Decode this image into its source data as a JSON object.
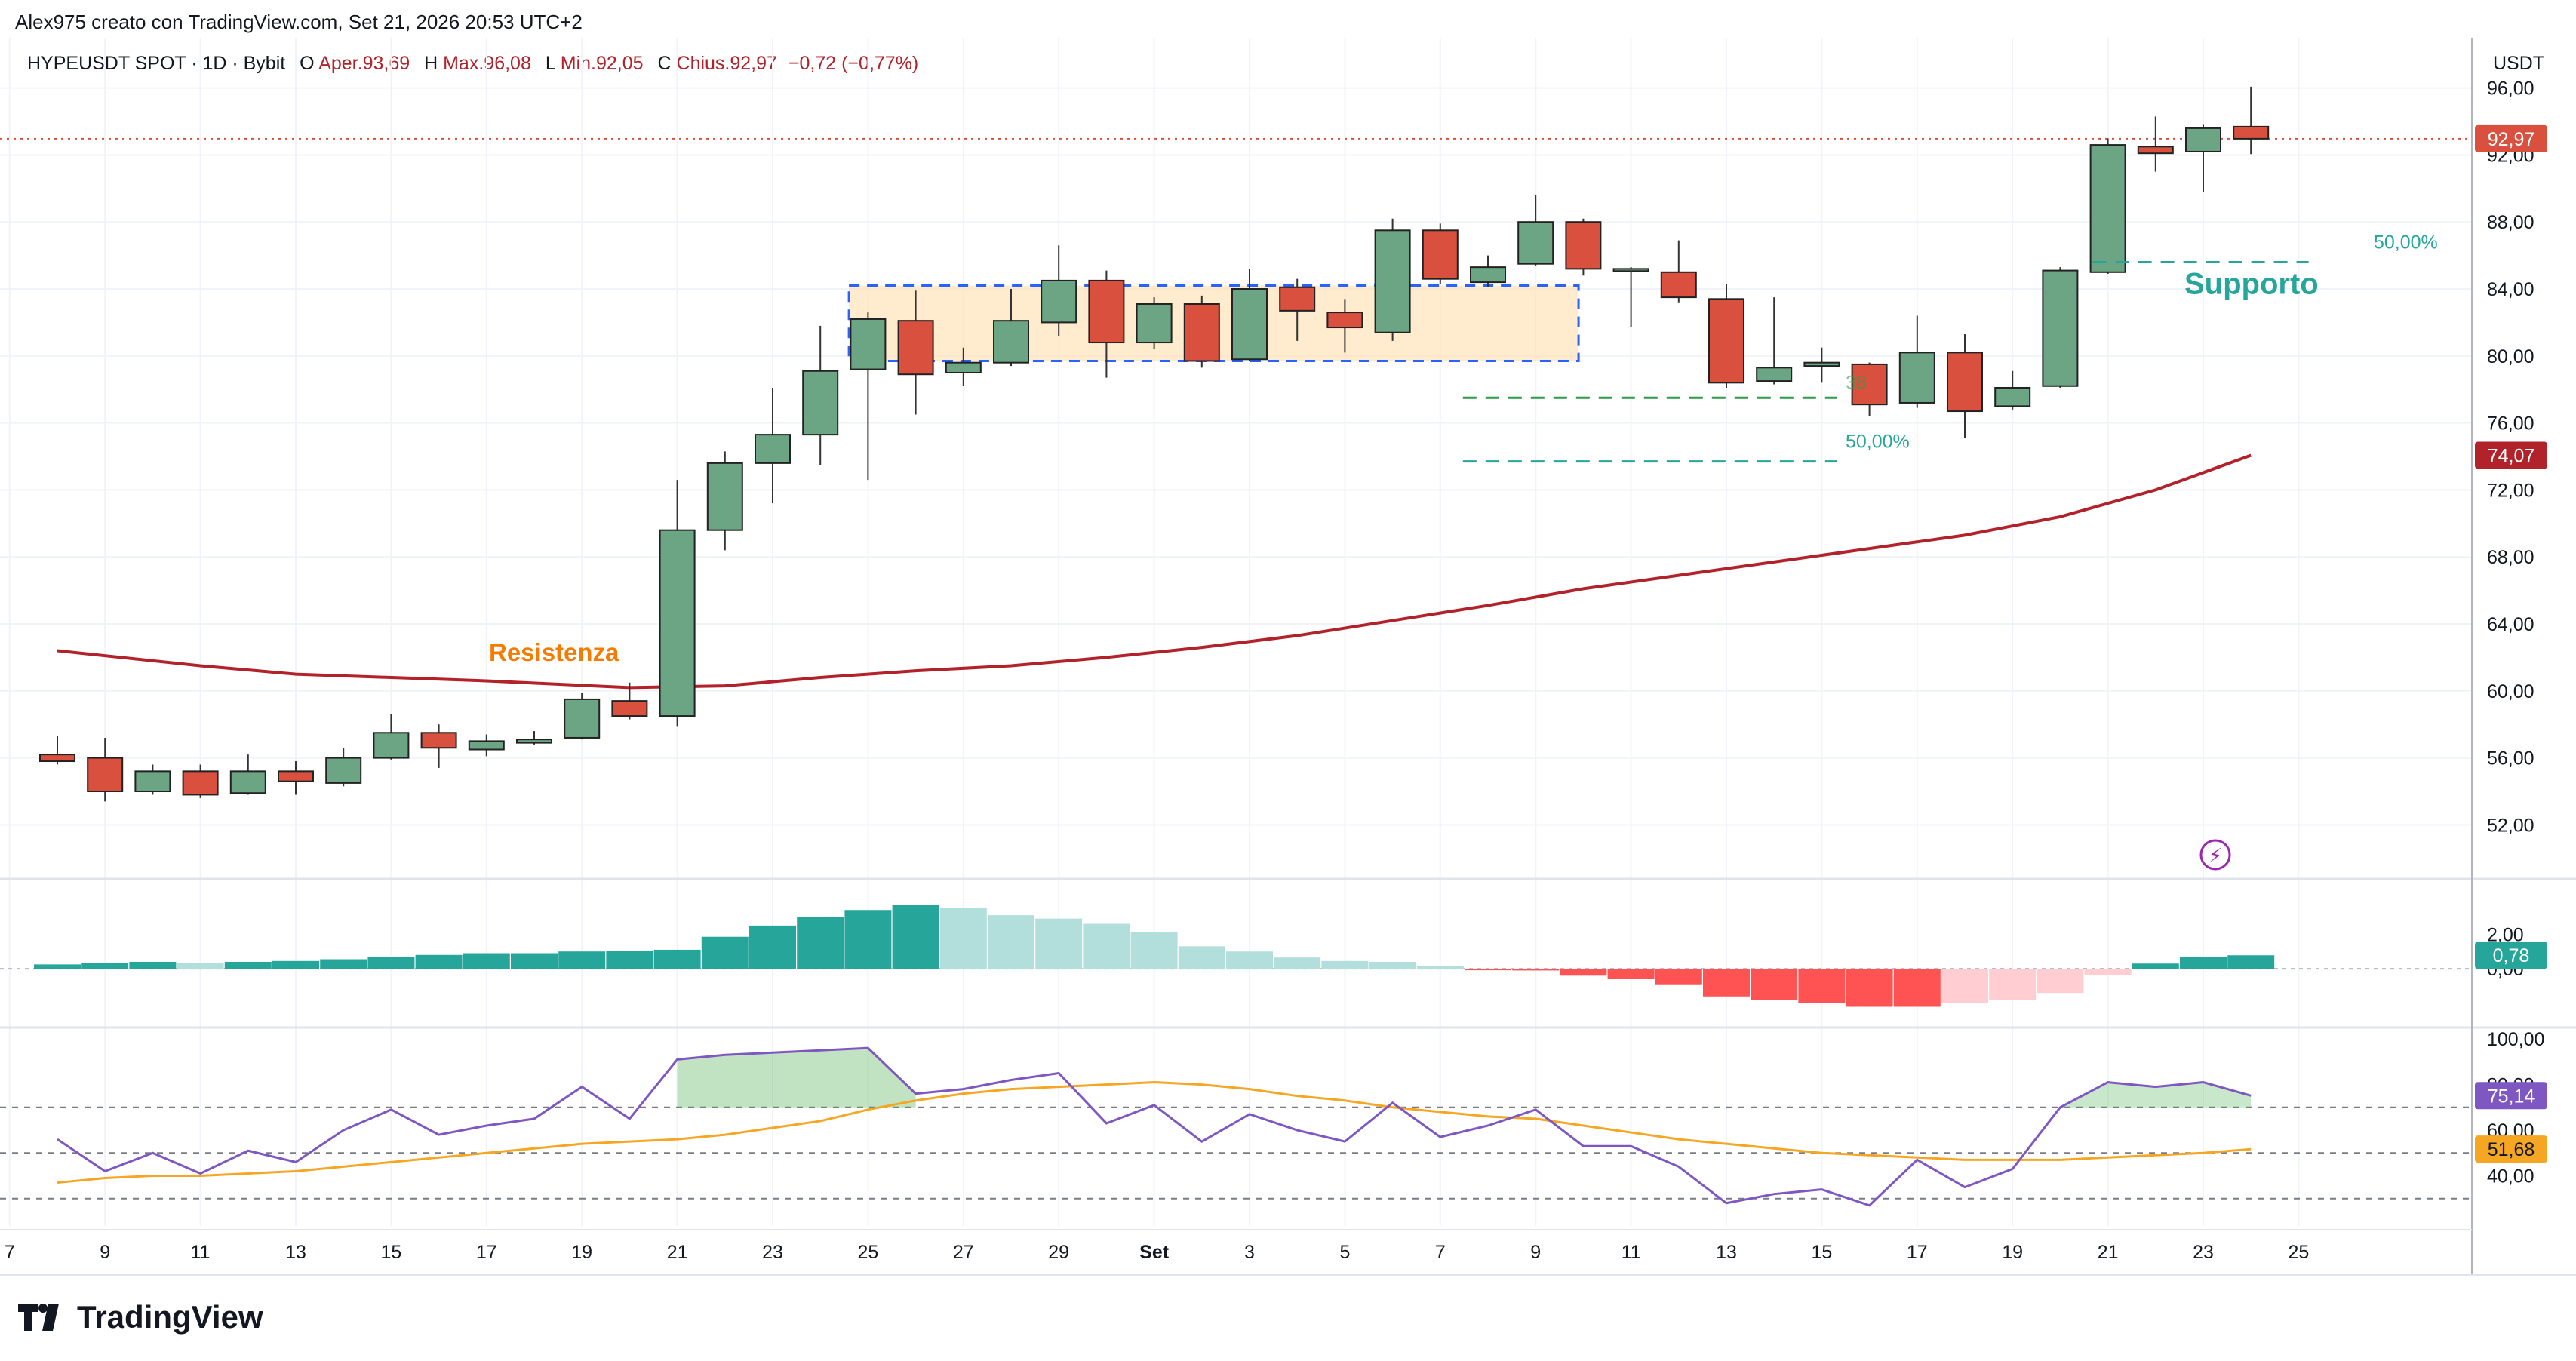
{
  "header": {
    "attribution": "Alex975 creato con TradingView.com, Set 21, 2026 20:53 UTC+2",
    "symbol_line": "HYPEUSDT SPOT · 1D · Bybit",
    "ohlc": {
      "o_label": "O",
      "o_value": "Aper.93,69",
      "h_label": "H",
      "h_value": "Max.96,08",
      "l_label": "L",
      "l_value": "Min.92,05",
      "c_label": "C",
      "c_value": "Chius.92,97",
      "change": "−0,72 (−0,77%)"
    },
    "currency": "USDT"
  },
  "brand": {
    "name": "TradingView"
  },
  "colors": {
    "up": "#6ba583",
    "down": "#d9503f",
    "ma": "#b2222a",
    "hist_strong_up": "#26a69a",
    "hist_weak_up": "#b2dfdb",
    "hist_strong_down": "#ff5252",
    "hist_weak_down": "#ffcdd2",
    "rsi": "#7e57c2",
    "rsi_ma": "#f5a623",
    "label_orange": "#f57c00",
    "label_teal": "#26a69a"
  },
  "chart_data": {
    "type": "candlestick",
    "x_tick_labels": [
      "7",
      "9",
      "11",
      "13",
      "15",
      "17",
      "19",
      "21",
      "23",
      "25",
      "27",
      "29",
      "Set",
      "3",
      "5",
      "7",
      "9",
      "11",
      "13",
      "15",
      "17",
      "19",
      "21",
      "23",
      "25"
    ],
    "price_axis": {
      "ylim": [
        49,
        99
      ],
      "ticks": [
        "52,00",
        "56,00",
        "60,00",
        "64,00",
        "68,00",
        "72,00",
        "76,00",
        "80,00",
        "84,00",
        "88,00",
        "92,00",
        "96,00"
      ]
    },
    "candles": [
      {
        "o": 56.2,
        "h": 57.3,
        "l": 55.6,
        "c": 55.8
      },
      {
        "o": 56.0,
        "h": 57.2,
        "l": 53.4,
        "c": 54.0
      },
      {
        "o": 54.0,
        "h": 55.6,
        "l": 53.8,
        "c": 55.2
      },
      {
        "o": 55.2,
        "h": 55.6,
        "l": 53.6,
        "c": 53.8
      },
      {
        "o": 53.9,
        "h": 56.2,
        "l": 53.8,
        "c": 55.2
      },
      {
        "o": 55.2,
        "h": 55.8,
        "l": 53.8,
        "c": 54.6
      },
      {
        "o": 54.5,
        "h": 56.6,
        "l": 54.3,
        "c": 56.0
      },
      {
        "o": 56.0,
        "h": 58.6,
        "l": 55.9,
        "c": 57.5
      },
      {
        "o": 57.5,
        "h": 58.0,
        "l": 55.4,
        "c": 56.6
      },
      {
        "o": 56.5,
        "h": 57.4,
        "l": 56.1,
        "c": 57.0
      },
      {
        "o": 56.9,
        "h": 57.6,
        "l": 56.8,
        "c": 57.1
      },
      {
        "o": 57.2,
        "h": 59.9,
        "l": 57.1,
        "c": 59.5
      },
      {
        "o": 59.4,
        "h": 60.5,
        "l": 58.3,
        "c": 58.5
      },
      {
        "o": 58.5,
        "h": 72.6,
        "l": 57.9,
        "c": 69.6
      },
      {
        "o": 69.6,
        "h": 74.3,
        "l": 68.4,
        "c": 73.6
      },
      {
        "o": 73.6,
        "h": 78.1,
        "l": 71.2,
        "c": 75.3
      },
      {
        "o": 75.3,
        "h": 81.8,
        "l": 73.5,
        "c": 79.1
      },
      {
        "o": 79.2,
        "h": 82.6,
        "l": 72.6,
        "c": 82.2
      },
      {
        "o": 82.1,
        "h": 83.9,
        "l": 76.5,
        "c": 78.9
      },
      {
        "o": 79.0,
        "h": 80.5,
        "l": 78.2,
        "c": 79.6
      },
      {
        "o": 79.6,
        "h": 84.0,
        "l": 79.4,
        "c": 82.1
      },
      {
        "o": 82.0,
        "h": 86.6,
        "l": 81.2,
        "c": 84.5
      },
      {
        "o": 84.5,
        "h": 85.1,
        "l": 78.7,
        "c": 80.8
      },
      {
        "o": 80.8,
        "h": 83.5,
        "l": 80.4,
        "c": 83.1
      },
      {
        "o": 83.1,
        "h": 83.6,
        "l": 79.3,
        "c": 79.7
      },
      {
        "o": 79.8,
        "h": 85.2,
        "l": 79.7,
        "c": 84.0
      },
      {
        "o": 84.1,
        "h": 84.6,
        "l": 80.9,
        "c": 82.7
      },
      {
        "o": 82.6,
        "h": 83.4,
        "l": 80.2,
        "c": 81.7
      },
      {
        "o": 81.4,
        "h": 88.2,
        "l": 80.9,
        "c": 87.5
      },
      {
        "o": 87.5,
        "h": 87.9,
        "l": 84.3,
        "c": 84.6
      },
      {
        "o": 84.4,
        "h": 86.0,
        "l": 84.1,
        "c": 85.3
      },
      {
        "o": 85.5,
        "h": 89.6,
        "l": 85.4,
        "c": 88.0
      },
      {
        "o": 88.0,
        "h": 88.2,
        "l": 84.8,
        "c": 85.2
      },
      {
        "o": 85.2,
        "h": 85.3,
        "l": 81.7,
        "c": 85.2
      },
      {
        "o": 85.0,
        "h": 86.9,
        "l": 83.2,
        "c": 83.5
      },
      {
        "o": 83.4,
        "h": 84.3,
        "l": 78.1,
        "c": 78.4
      },
      {
        "o": 78.5,
        "h": 83.5,
        "l": 78.3,
        "c": 79.3
      },
      {
        "o": 79.4,
        "h": 80.5,
        "l": 78.4,
        "c": 79.6
      },
      {
        "o": 79.5,
        "h": 79.6,
        "l": 76.4,
        "c": 77.1
      },
      {
        "o": 77.2,
        "h": 82.4,
        "l": 76.9,
        "c": 80.2
      },
      {
        "o": 80.2,
        "h": 81.3,
        "l": 75.1,
        "c": 76.7
      },
      {
        "o": 77.0,
        "h": 79.1,
        "l": 76.8,
        "c": 78.1
      },
      {
        "o": 78.2,
        "h": 85.3,
        "l": 78.1,
        "c": 85.1
      },
      {
        "o": 85.0,
        "h": 93.0,
        "l": 84.9,
        "c": 92.6
      },
      {
        "o": 92.5,
        "h": 94.3,
        "l": 91.0,
        "c": 92.1
      },
      {
        "o": 92.2,
        "h": 93.8,
        "l": 89.8,
        "c": 93.6
      },
      {
        "o": 93.69,
        "h": 96.08,
        "l": 92.05,
        "c": 92.97
      }
    ],
    "moving_average": {
      "last_label": "74,07",
      "points": [
        [
          0,
          62.4
        ],
        [
          3,
          61.5
        ],
        [
          5,
          61.0
        ],
        [
          9,
          60.6
        ],
        [
          12,
          60.2
        ],
        [
          14,
          60.3
        ],
        [
          16,
          60.8
        ],
        [
          18,
          61.2
        ],
        [
          20,
          61.5
        ],
        [
          22,
          62.0
        ],
        [
          24,
          62.6
        ],
        [
          26,
          63.3
        ],
        [
          28,
          64.2
        ],
        [
          30,
          65.1
        ],
        [
          32,
          66.1
        ],
        [
          34,
          66.9
        ],
        [
          36,
          67.7
        ],
        [
          38,
          68.5
        ],
        [
          40,
          69.3
        ],
        [
          42,
          70.4
        ],
        [
          44,
          72.0
        ],
        [
          46,
          74.07
        ]
      ]
    },
    "last_price_label": "92,97",
    "annotations": {
      "resistenza": {
        "text": "Resistenza",
        "index": 10,
        "price": 61.8
      },
      "supporto": {
        "text": "Supporto",
        "index": 45,
        "price": 83.7
      },
      "fib_50_top": {
        "text": "50,00%",
        "from": 43,
        "to": 48,
        "price": 85.6
      },
      "fib_line_mid": {
        "text": "38",
        "from": 29,
        "to": 37,
        "price": 77.5
      },
      "fib_50_low": {
        "text": "50,00%",
        "from": 29,
        "to": 37,
        "price": 73.7
      },
      "consolidation_box": {
        "from": 16.6,
        "to": 31.9,
        "low": 79.7,
        "high": 84.2
      }
    },
    "histogram": {
      "ylim": [
        -3.4,
        5.2
      ],
      "ticks": [
        "2,00",
        "0,00"
      ],
      "last_label": "0,78",
      "values": [
        0.25,
        0.35,
        0.4,
        0.35,
        0.4,
        0.45,
        0.55,
        0.7,
        0.8,
        0.9,
        0.9,
        1.0,
        1.05,
        1.1,
        1.85,
        2.5,
        3.0,
        3.4,
        3.7,
        3.5,
        3.1,
        2.9,
        2.6,
        2.1,
        1.3,
        1.0,
        0.65,
        0.45,
        0.4,
        0.15,
        -0.05,
        -0.1,
        -0.4,
        -0.6,
        -0.9,
        -1.6,
        -1.8,
        -2.0,
        -2.2,
        -2.2,
        -2.0,
        -1.8,
        -1.4,
        -0.35,
        0.3,
        0.7,
        0.78
      ]
    },
    "rsi": {
      "ylim": [
        18,
        105
      ],
      "ticks": [
        "100,00",
        "80,00",
        "60,00",
        "40,00"
      ],
      "last_label": "75,14",
      "ma_last_label": "51,68",
      "levels": [
        70,
        50,
        30
      ],
      "values": [
        56,
        42,
        50,
        41,
        51,
        46,
        60,
        69,
        58,
        62,
        65,
        79,
        65,
        91,
        93,
        94,
        95,
        96,
        76,
        78,
        82,
        85,
        63,
        71,
        55,
        67,
        60,
        55,
        72,
        57,
        62,
        69,
        53,
        53,
        44,
        28,
        32,
        34,
        27,
        47,
        35,
        43,
        70,
        81,
        79,
        81,
        75.14
      ],
      "ma_values": [
        37,
        39,
        40,
        40,
        41,
        42,
        44,
        46,
        48,
        50,
        52,
        54,
        55,
        56,
        58,
        61,
        64,
        69,
        73,
        76,
        78,
        79,
        80,
        81,
        80,
        78,
        75,
        73,
        70,
        68,
        66,
        65,
        62,
        59,
        56,
        54,
        52,
        50,
        49,
        48,
        47,
        47,
        47,
        48,
        49,
        50,
        51.68
      ]
    }
  }
}
